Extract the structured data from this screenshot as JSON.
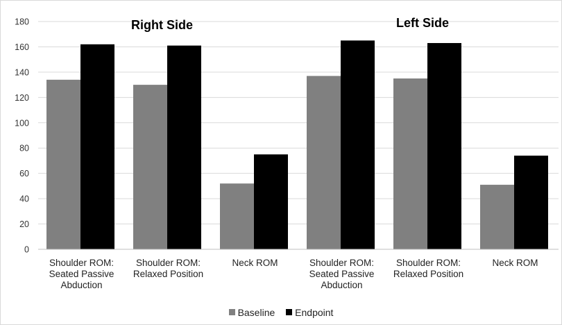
{
  "chart_data": {
    "type": "bar",
    "categories": [
      "Shoulder ROM: Seated Passive Abduction",
      "Shoulder ROM: Relaxed Position",
      "Neck ROM",
      "Shoulder ROM: Seated Passive Abduction",
      "Shoulder ROM: Relaxed Position",
      "Neck ROM"
    ],
    "category_label_lines": [
      "Shoulder ROM:\nSeated Passive\nAbduction",
      "Shoulder ROM:\nRelaxed Position",
      "Neck ROM",
      "Shoulder ROM:\nSeated Passive\nAbduction",
      "Shoulder ROM:\nRelaxed Position",
      "Neck ROM"
    ],
    "series": [
      {
        "name": "Baseline",
        "color": "#808080",
        "values": [
          134,
          130,
          52,
          137,
          135,
          51
        ]
      },
      {
        "name": "Endpoint",
        "color": "#000000",
        "values": [
          162,
          161,
          75,
          165,
          163,
          74
        ]
      }
    ],
    "annotations": [
      "Right Side",
      "Left Side"
    ],
    "ylim": [
      0,
      180
    ],
    "yticks": [
      0,
      20,
      40,
      60,
      80,
      100,
      120,
      140,
      160,
      180
    ],
    "grid": true,
    "legend_position": "bottom"
  }
}
